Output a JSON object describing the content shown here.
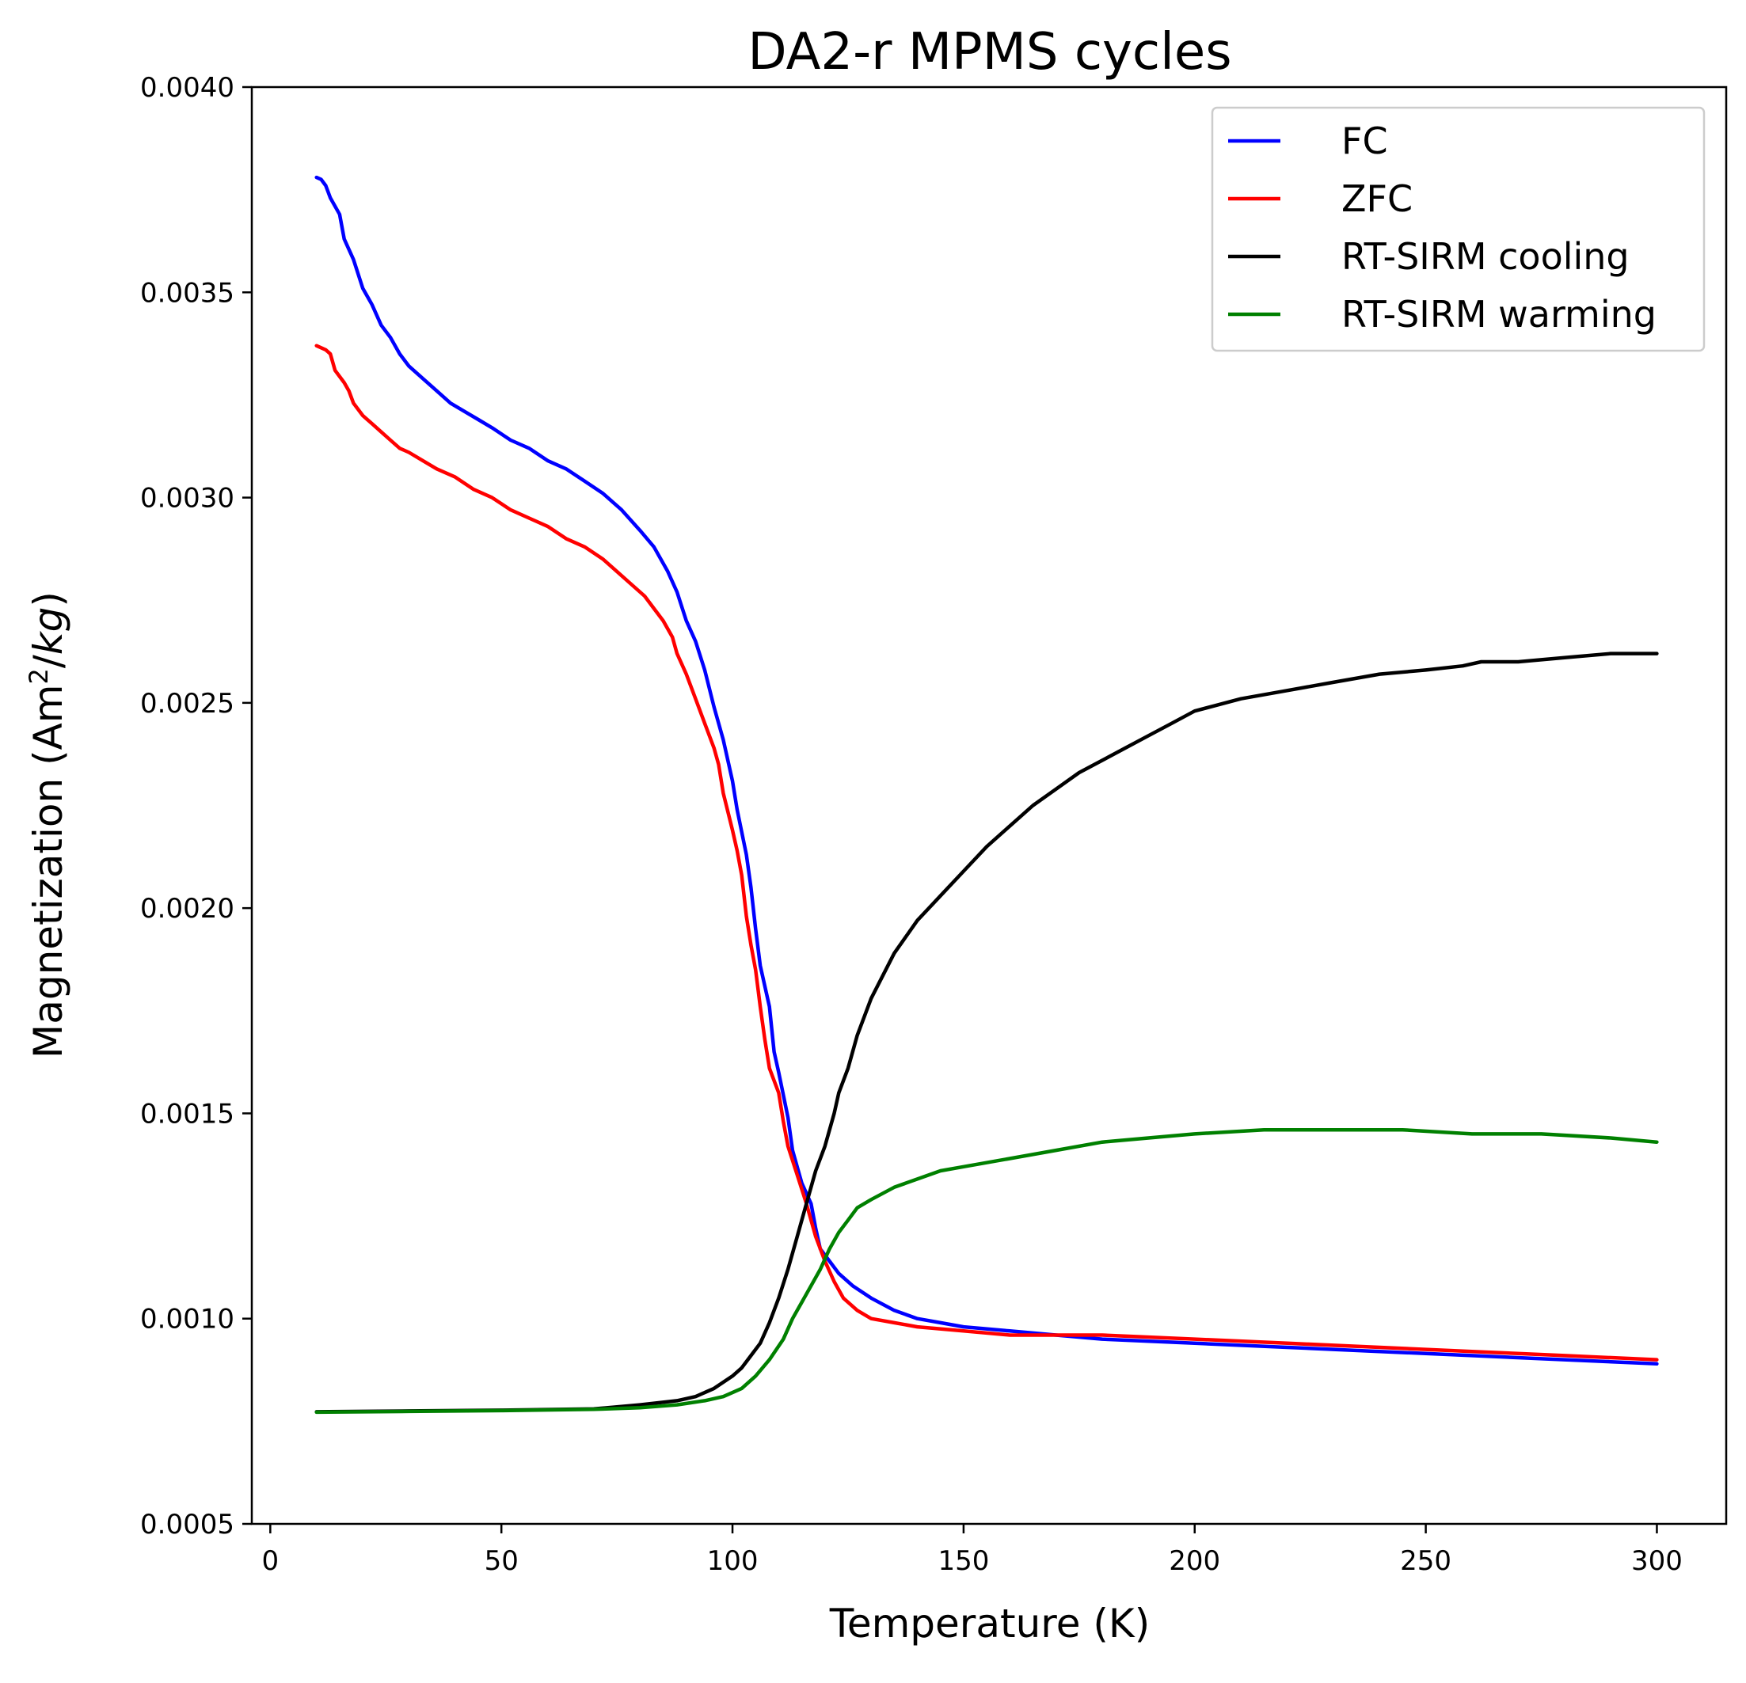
{
  "chart_data": {
    "type": "line",
    "title": "DA2-r MPMS cycles",
    "xlabel": "Temperature (K)",
    "ylabel": {
      "prefix": "Magnetization (Am",
      "sup": "2",
      "slash": "/",
      "unit_italic": "kg",
      "suffix": ")"
    },
    "xlim": [
      -4,
      315
    ],
    "ylim": [
      0.0005,
      0.004
    ],
    "xticks": [
      0,
      50,
      100,
      150,
      200,
      250,
      300
    ],
    "yticks": [
      0.0005,
      0.001,
      0.0015,
      0.002,
      0.0025,
      0.003,
      0.0035,
      0.004
    ],
    "xtick_labels": [
      "0",
      "50",
      "100",
      "150",
      "200",
      "250",
      "300"
    ],
    "ytick_labels": [
      "0.0005",
      "0.0010",
      "0.0015",
      "0.0020",
      "0.0025",
      "0.0030",
      "0.0035",
      "0.0040"
    ],
    "grid": false,
    "legend_position": "top-right",
    "series": [
      {
        "name": "FC",
        "color": "#0000ff",
        "points": [
          [
            10,
            0.00378
          ],
          [
            11,
            0.003775
          ],
          [
            12,
            0.00376
          ],
          [
            13,
            0.00373
          ],
          [
            15,
            0.00369
          ],
          [
            16,
            0.00363
          ],
          [
            18,
            0.00358
          ],
          [
            20,
            0.00351
          ],
          [
            22,
            0.00347
          ],
          [
            24,
            0.00342
          ],
          [
            26,
            0.00339
          ],
          [
            28,
            0.00335
          ],
          [
            30,
            0.00332
          ],
          [
            33,
            0.00329
          ],
          [
            36,
            0.00326
          ],
          [
            39,
            0.00323
          ],
          [
            42,
            0.00321
          ],
          [
            45,
            0.00319
          ],
          [
            48,
            0.00317
          ],
          [
            52,
            0.00314
          ],
          [
            56,
            0.00312
          ],
          [
            60,
            0.00309
          ],
          [
            64,
            0.00307
          ],
          [
            68,
            0.00304
          ],
          [
            72,
            0.00301
          ],
          [
            76,
            0.00297
          ],
          [
            80,
            0.00292
          ],
          [
            83,
            0.00288
          ],
          [
            86,
            0.00282
          ],
          [
            88,
            0.00277
          ],
          [
            90,
            0.0027
          ],
          [
            92,
            0.00265
          ],
          [
            94,
            0.00258
          ],
          [
            96,
            0.00249
          ],
          [
            98,
            0.00241
          ],
          [
            100,
            0.00231
          ],
          [
            101,
            0.00224
          ],
          [
            103,
            0.00213
          ],
          [
            104,
            0.00205
          ],
          [
            105,
            0.00195
          ],
          [
            106,
            0.00186
          ],
          [
            108,
            0.00176
          ],
          [
            109,
            0.00165
          ],
          [
            110,
            0.0016
          ],
          [
            112,
            0.00149
          ],
          [
            113,
            0.00141
          ],
          [
            115,
            0.00133
          ],
          [
            117,
            0.00128
          ],
          [
            118,
            0.00122
          ],
          [
            119,
            0.00117
          ],
          [
            121,
            0.00114
          ],
          [
            123,
            0.00111
          ],
          [
            126,
            0.00108
          ],
          [
            130,
            0.00105
          ],
          [
            135,
            0.00102
          ],
          [
            140,
            0.001
          ],
          [
            145,
            0.00099
          ],
          [
            150,
            0.00098
          ],
          [
            160,
            0.00097
          ],
          [
            170,
            0.00096
          ],
          [
            180,
            0.00095
          ],
          [
            200,
            0.00094
          ],
          [
            220,
            0.00093
          ],
          [
            240,
            0.00092
          ],
          [
            260,
            0.00091
          ],
          [
            280,
            0.0009
          ],
          [
            300,
            0.00089
          ]
        ]
      },
      {
        "name": "ZFC",
        "color": "#ff0000",
        "points": [
          [
            10,
            0.00337
          ],
          [
            12,
            0.00336
          ],
          [
            13,
            0.00335
          ],
          [
            14,
            0.00331
          ],
          [
            16,
            0.00328
          ],
          [
            17,
            0.00326
          ],
          [
            18,
            0.00323
          ],
          [
            20,
            0.0032
          ],
          [
            22,
            0.00318
          ],
          [
            24,
            0.00316
          ],
          [
            26,
            0.00314
          ],
          [
            28,
            0.00312
          ],
          [
            30,
            0.00311
          ],
          [
            33,
            0.00309
          ],
          [
            36,
            0.00307
          ],
          [
            40,
            0.00305
          ],
          [
            44,
            0.00302
          ],
          [
            48,
            0.003
          ],
          [
            52,
            0.00297
          ],
          [
            56,
            0.00295
          ],
          [
            60,
            0.00293
          ],
          [
            64,
            0.0029
          ],
          [
            68,
            0.00288
          ],
          [
            72,
            0.00285
          ],
          [
            75,
            0.00282
          ],
          [
            78,
            0.00279
          ],
          [
            81,
            0.00276
          ],
          [
            83,
            0.00273
          ],
          [
            85,
            0.0027
          ],
          [
            87,
            0.00266
          ],
          [
            88,
            0.00262
          ],
          [
            90,
            0.00257
          ],
          [
            92,
            0.00251
          ],
          [
            94,
            0.00245
          ],
          [
            96,
            0.00239
          ],
          [
            97,
            0.00235
          ],
          [
            98,
            0.00228
          ],
          [
            100,
            0.00219
          ],
          [
            101,
            0.00214
          ],
          [
            102,
            0.00208
          ],
          [
            103,
            0.00198
          ],
          [
            104,
            0.00191
          ],
          [
            105,
            0.00185
          ],
          [
            106,
            0.00176
          ],
          [
            107,
            0.00168
          ],
          [
            108,
            0.00161
          ],
          [
            110,
            0.00155
          ],
          [
            111,
            0.00148
          ],
          [
            112,
            0.00142
          ],
          [
            114,
            0.00135
          ],
          [
            116,
            0.00128
          ],
          [
            118,
            0.0012
          ],
          [
            120,
            0.00114
          ],
          [
            122,
            0.00109
          ],
          [
            124,
            0.00105
          ],
          [
            127,
            0.00102
          ],
          [
            130,
            0.001
          ],
          [
            135,
            0.00099
          ],
          [
            140,
            0.00098
          ],
          [
            150,
            0.00097
          ],
          [
            160,
            0.00096
          ],
          [
            180,
            0.00096
          ],
          [
            200,
            0.00095
          ],
          [
            220,
            0.00094
          ],
          [
            240,
            0.00093
          ],
          [
            260,
            0.00092
          ],
          [
            280,
            0.00091
          ],
          [
            300,
            0.0009
          ]
        ]
      },
      {
        "name": "RT-SIRM cooling",
        "color": "#000000",
        "points": [
          [
            300,
            0.00262
          ],
          [
            295,
            0.00262
          ],
          [
            290,
            0.00262
          ],
          [
            280,
            0.00261
          ],
          [
            270,
            0.0026
          ],
          [
            262,
            0.0026
          ],
          [
            258,
            0.00259
          ],
          [
            250,
            0.00258
          ],
          [
            240,
            0.00257
          ],
          [
            230,
            0.00255
          ],
          [
            220,
            0.00253
          ],
          [
            210,
            0.00251
          ],
          [
            200,
            0.00248
          ],
          [
            195,
            0.00245
          ],
          [
            190,
            0.00242
          ],
          [
            185,
            0.00239
          ],
          [
            180,
            0.00236
          ],
          [
            175,
            0.00233
          ],
          [
            170,
            0.00229
          ],
          [
            165,
            0.00225
          ],
          [
            160,
            0.0022
          ],
          [
            155,
            0.00215
          ],
          [
            150,
            0.00209
          ],
          [
            145,
            0.00203
          ],
          [
            140,
            0.00197
          ],
          [
            135,
            0.00189
          ],
          [
            130,
            0.00178
          ],
          [
            127,
            0.00169
          ],
          [
            125,
            0.00161
          ],
          [
            123,
            0.00155
          ],
          [
            122,
            0.0015
          ],
          [
            120,
            0.00142
          ],
          [
            118,
            0.00136
          ],
          [
            116,
            0.00128
          ],
          [
            114,
            0.0012
          ],
          [
            112,
            0.00112
          ],
          [
            110,
            0.00105
          ],
          [
            108,
            0.00099
          ],
          [
            106,
            0.00094
          ],
          [
            104,
            0.00091
          ],
          [
            102,
            0.00088
          ],
          [
            100,
            0.00086
          ],
          [
            96,
            0.00083
          ],
          [
            92,
            0.00081
          ],
          [
            88,
            0.0008
          ],
          [
            80,
            0.00079
          ],
          [
            70,
            0.00078
          ],
          [
            50,
            0.000777
          ],
          [
            30,
            0.000775
          ],
          [
            10,
            0.000773
          ]
        ]
      },
      {
        "name": "RT-SIRM warming",
        "color": "#008000",
        "points": [
          [
            10,
            0.000772
          ],
          [
            30,
            0.000774
          ],
          [
            50,
            0.000776
          ],
          [
            70,
            0.000779
          ],
          [
            80,
            0.000783
          ],
          [
            88,
            0.00079
          ],
          [
            94,
            0.0008
          ],
          [
            98,
            0.00081
          ],
          [
            102,
            0.00083
          ],
          [
            105,
            0.00086
          ],
          [
            108,
            0.0009
          ],
          [
            111,
            0.00095
          ],
          [
            113,
            0.001
          ],
          [
            115,
            0.00104
          ],
          [
            117,
            0.00108
          ],
          [
            119,
            0.00112
          ],
          [
            121,
            0.00117
          ],
          [
            123,
            0.00121
          ],
          [
            125,
            0.00124
          ],
          [
            127,
            0.00127
          ],
          [
            130,
            0.00129
          ],
          [
            135,
            0.00132
          ],
          [
            140,
            0.00134
          ],
          [
            145,
            0.00136
          ],
          [
            150,
            0.00137
          ],
          [
            160,
            0.00139
          ],
          [
            170,
            0.00141
          ],
          [
            180,
            0.00143
          ],
          [
            190,
            0.00144
          ],
          [
            200,
            0.00145
          ],
          [
            215,
            0.00146
          ],
          [
            230,
            0.00146
          ],
          [
            245,
            0.00146
          ],
          [
            260,
            0.00145
          ],
          [
            275,
            0.00145
          ],
          [
            290,
            0.00144
          ],
          [
            300,
            0.00143
          ]
        ]
      }
    ]
  }
}
